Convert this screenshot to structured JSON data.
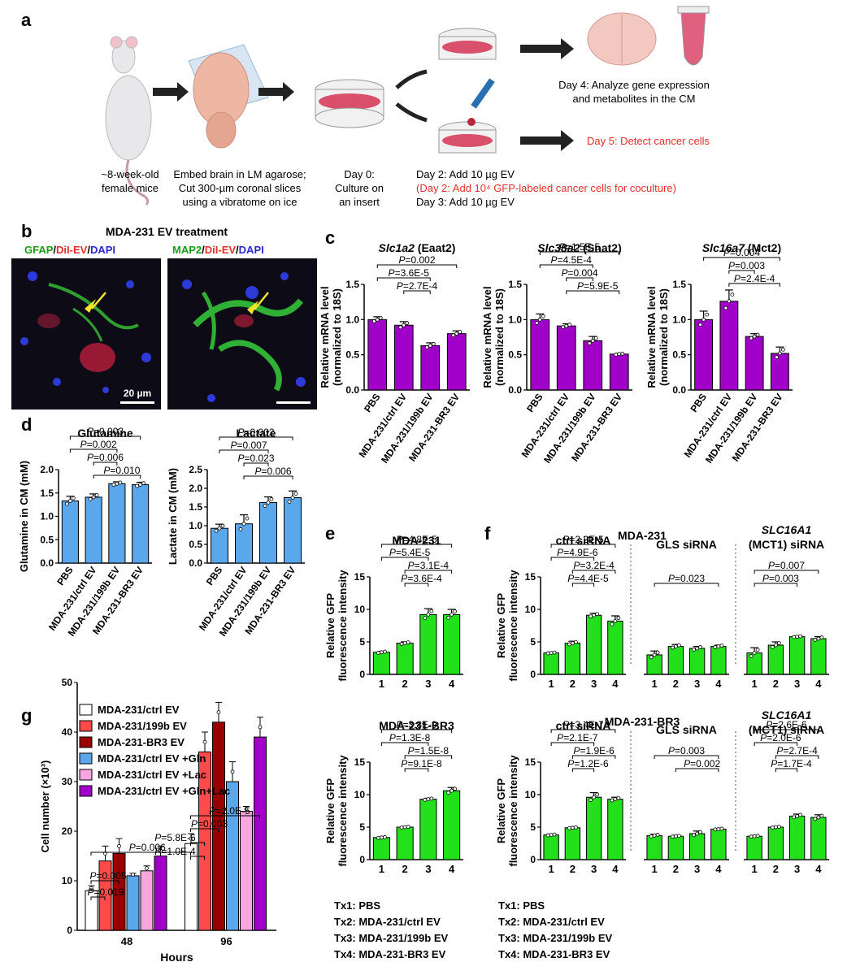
{
  "panel_a": {
    "letter": "a",
    "steps": [
      {
        "lines": [
          "~8-week-old",
          "female mice"
        ]
      },
      {
        "lines": [
          "Embed brain in LM agarose;",
          "Cut 300-µm coronal slices",
          "using a vibratome on ice"
        ]
      },
      {
        "lines": [
          "Day 0:",
          "Culture on",
          "an insert"
        ]
      }
    ],
    "day4": [
      "Day 4: Analyze gene expression",
      "and metabolites in the CM"
    ],
    "day5": "Day 5: Detect cancer cells",
    "day2": "Day 2: Add 10 µg EV",
    "day2_red": "(Day 2: Add 10⁴ GFP-labeled cancer cells for coculture)",
    "day3": "Day 3: Add 10 µg EV"
  },
  "panel_b": {
    "letter": "b",
    "title": "MDA-231 EV treatment",
    "left_stain": {
      "parts": [
        "GFAP",
        "/",
        "DiI-EV",
        "/",
        "DAPI"
      ]
    },
    "right_stain": {
      "parts": [
        "MAP2",
        "/",
        "DiI-EV",
        "/",
        "DAPI"
      ]
    },
    "scale": "20 µm"
  },
  "colors": {
    "purple": "#a100c8",
    "blue": "#5aa7ec",
    "green": "#22e01a",
    "red": "#e3302a",
    "blue_text": "#2a2ad0",
    "green_text": "#1a9c18"
  },
  "panel_c": {
    "letter": "c"
  },
  "panel_d": {
    "letter": "d"
  },
  "panel_e": {
    "letter": "e"
  },
  "panel_f": {
    "letter": "f",
    "title": "MDA-231",
    "title2": "MDA-231-BR3"
  },
  "panel_g": {
    "letter": "g"
  },
  "tx_legend": [
    "Tx1: PBS",
    "Tx2: MDA-231/ctrl EV",
    "Tx3: MDA-231/199b EV",
    "Tx4: MDA-231-BR3 EV"
  ],
  "chart_data": [
    {
      "id": "c1",
      "type": "bar",
      "title": "Slc1a2 (Eaat2)",
      "ylabel": "Relative mRNA level (normalized to 18S)",
      "categories": [
        "PBS",
        "MDA-231/ctrl EV",
        "MDA-231/199b EV",
        "MDA-231-BR3 EV"
      ],
      "values": [
        1.0,
        0.92,
        0.63,
        0.8
      ],
      "errors": [
        0.04,
        0.05,
        0.04,
        0.04
      ],
      "ylim": [
        0,
        1.5
      ],
      "yticks": [
        "0.0",
        "0.5",
        "1.0",
        "1.5"
      ],
      "pvalues": [
        {
          "from": 0,
          "to": 3,
          "label": "P=0.002"
        },
        {
          "from": 0,
          "to": 2,
          "label": "P=3.6E-5"
        },
        {
          "from": 1,
          "to": 2,
          "label": "P=2.7E-4"
        }
      ]
    },
    {
      "id": "c2",
      "type": "bar",
      "title": "Slc38a2 (Snat2)",
      "ylabel": "Relative mRNA level (normalized to 18S)",
      "categories": [
        "PBS",
        "MDA-231/ctrl EV",
        "MDA-231/199b EV",
        "MDA-231-BR3 EV"
      ],
      "values": [
        1.0,
        0.91,
        0.7,
        0.51
      ],
      "errors": [
        0.08,
        0.03,
        0.06,
        0.01
      ],
      "ylim": [
        0,
        1.5
      ],
      "yticks": [
        "0.0",
        "0.5",
        "1.0",
        "1.5"
      ],
      "pvalues": [
        {
          "from": 0,
          "to": 3,
          "label": "P=1.5E-5"
        },
        {
          "from": 0,
          "to": 2,
          "label": "P=4.5E-4"
        },
        {
          "from": 1,
          "to": 2,
          "label": "P=0.004"
        },
        {
          "from": 1,
          "to": 3,
          "label": "P=5.9E-5"
        }
      ]
    },
    {
      "id": "c3",
      "type": "bar",
      "title": "Slc16a7 (Mct2)",
      "ylabel": "Relative mRNA level (normalized to 18S)",
      "categories": [
        "PBS",
        "MDA-231/ctrl EV",
        "MDA-231/199b EV",
        "MDA-231-BR3 EV"
      ],
      "values": [
        1.0,
        1.26,
        0.76,
        0.52
      ],
      "errors": [
        0.12,
        0.16,
        0.04,
        0.09
      ],
      "ylim": [
        0,
        1.5
      ],
      "yticks": [
        "0.0",
        "0.5",
        "1.0",
        "1.5"
      ],
      "pvalues": [
        {
          "from": 0,
          "to": 3,
          "label": "P=0.004"
        },
        {
          "from": 1,
          "to": 2,
          "label": "P=0.003"
        },
        {
          "from": 1,
          "to": 3,
          "label": "P=2.4E-4"
        }
      ]
    },
    {
      "id": "d1",
      "type": "bar",
      "title": "Glutamine",
      "ylabel": "Glutamine in CM (mM)",
      "categories": [
        "PBS",
        "MDA-231/ctrl EV",
        "MDA-231/199b EV",
        "MDA-231-BR3 EV"
      ],
      "values": [
        1.33,
        1.41,
        1.7,
        1.68
      ],
      "errors": [
        0.1,
        0.07,
        0.04,
        0.05
      ],
      "ylim": [
        0,
        2.0
      ],
      "yticks": [
        "0.0",
        "0.5",
        "1.0",
        "1.5",
        "2.0"
      ],
      "pvalues": [
        {
          "from": 0,
          "to": 3,
          "label": "P=0.003"
        },
        {
          "from": 0,
          "to": 2,
          "label": "P=0.002"
        },
        {
          "from": 1,
          "to": 2,
          "label": "P=0.006"
        },
        {
          "from": 1,
          "to": 3,
          "label": "P=0.010"
        }
      ]
    },
    {
      "id": "d2",
      "type": "bar",
      "title": "Lactate",
      "ylabel": "Lactate in CM (mM)",
      "categories": [
        "PBS",
        "MDA-231/ctrl EV",
        "MDA-231/199b EV",
        "MDA-231-BR3 EV"
      ],
      "values": [
        0.93,
        1.05,
        1.62,
        1.75
      ],
      "errors": [
        0.11,
        0.24,
        0.15,
        0.18
      ],
      "ylim": [
        0,
        2.5
      ],
      "yticks": [
        "0.0",
        "0.5",
        "1.0",
        "1.5",
        "2.0",
        "2.5"
      ],
      "pvalues": [
        {
          "from": 0,
          "to": 3,
          "label": "P=0.002"
        },
        {
          "from": 0,
          "to": 2,
          "label": "P=0.007"
        },
        {
          "from": 1,
          "to": 2,
          "label": "P=0.023"
        },
        {
          "from": 1,
          "to": 3,
          "label": "P=0.006"
        }
      ]
    },
    {
      "id": "e1",
      "type": "bar",
      "title": "MDA-231",
      "ylabel": "Relative GFP fluorescence intensity",
      "categories": [
        "1",
        "2",
        "3",
        "4"
      ],
      "values": [
        3.4,
        4.8,
        9.2,
        9.2
      ],
      "errors": [
        0.15,
        0.2,
        0.9,
        0.8
      ],
      "ylim": [
        0,
        15
      ],
      "yticks": [
        "0",
        "5",
        "10",
        "15"
      ],
      "pvalues": [
        {
          "from": 0,
          "to": 3,
          "label": "P=4.8E-5"
        },
        {
          "from": 0,
          "to": 2,
          "label": "P=5.4E-5"
        },
        {
          "from": 1,
          "to": 3,
          "label": "P=3.1E-4"
        },
        {
          "from": 1,
          "to": 2,
          "label": "P=3.6E-4"
        }
      ]
    },
    {
      "id": "e2",
      "type": "bar",
      "title": "MDA-231-BR3",
      "ylabel": "Relative GFP fluorescence intensity",
      "categories": [
        "1",
        "2",
        "3",
        "4"
      ],
      "values": [
        3.4,
        5.0,
        9.3,
        10.6
      ],
      "errors": [
        0.1,
        0.1,
        0.15,
        0.5
      ],
      "ylim": [
        0,
        15
      ],
      "yticks": [
        "0",
        "5",
        "10",
        "15"
      ],
      "pvalues": [
        {
          "from": 0,
          "to": 3,
          "label": "P=3.8E-9"
        },
        {
          "from": 0,
          "to": 2,
          "label": "P=1.3E-8"
        },
        {
          "from": 1,
          "to": 3,
          "label": "P=1.5E-8"
        },
        {
          "from": 1,
          "to": 2,
          "label": "P=9.1E-8"
        }
      ]
    },
    {
      "id": "f1",
      "type": "bar",
      "title": "ctrl siRNA",
      "ylabel": "Relative GFP fluorescence intensity",
      "categories": [
        "1",
        "2",
        "3",
        "4"
      ],
      "values": [
        3.3,
        4.8,
        9.1,
        8.2
      ],
      "errors": [
        0.1,
        0.3,
        0.3,
        0.8
      ],
      "ylim": [
        0,
        15
      ],
      "yticks": [
        "0",
        "5",
        "10",
        "15"
      ],
      "pvalues": [
        {
          "from": 0,
          "to": 3,
          "label": "P=2.2E-5"
        },
        {
          "from": 0,
          "to": 2,
          "label": "P=4.9E-6"
        },
        {
          "from": 1,
          "to": 3,
          "label": "P=3.2E-4"
        },
        {
          "from": 1,
          "to": 2,
          "label": "P=4.4E-5"
        }
      ]
    },
    {
      "id": "f2",
      "type": "bar",
      "title": "GLS siRNA",
      "categories": [
        "1",
        "2",
        "3",
        "4"
      ],
      "values": [
        3.0,
        4.3,
        4.0,
        4.3
      ],
      "errors": [
        0.6,
        0.3,
        0.3,
        0.2
      ],
      "ylim": [
        0,
        15
      ],
      "pvalues": [
        {
          "from": 0,
          "to": 3,
          "label": "P=0.023"
        }
      ]
    },
    {
      "id": "f3",
      "type": "bar",
      "title": "SLC16A1 (MCT1) siRNA",
      "categories": [
        "1",
        "2",
        "3",
        "4"
      ],
      "values": [
        3.3,
        4.5,
        5.8,
        5.5
      ],
      "errors": [
        0.8,
        0.5,
        0.1,
        0.3
      ],
      "ylim": [
        0,
        15
      ],
      "pvalues": [
        {
          "from": 0,
          "to": 3,
          "label": "P=0.007"
        },
        {
          "from": 0,
          "to": 2,
          "label": "P=0.003"
        }
      ]
    },
    {
      "id": "f4",
      "type": "bar",
      "title": "ctrl siRNA",
      "ylabel": "Relative GFP fluorescence intensity",
      "categories": [
        "1",
        "2",
        "3",
        "4"
      ],
      "values": [
        3.8,
        4.9,
        9.6,
        9.3
      ],
      "errors": [
        0.1,
        0.1,
        0.7,
        0.3
      ],
      "ylim": [
        0,
        15
      ],
      "yticks": [
        "0",
        "5",
        "10",
        "15"
      ],
      "pvalues": [
        {
          "from": 0,
          "to": 3,
          "label": "P=3.4E-7"
        },
        {
          "from": 0,
          "to": 2,
          "label": "P=2.1E-7"
        },
        {
          "from": 1,
          "to": 3,
          "label": "P=1.9E-6"
        },
        {
          "from": 1,
          "to": 2,
          "label": "P=1.2E-6"
        }
      ]
    },
    {
      "id": "f5",
      "type": "bar",
      "title": "GLS siRNA",
      "categories": [
        "1",
        "2",
        "3",
        "4"
      ],
      "values": [
        3.7,
        3.6,
        4.0,
        4.7
      ],
      "errors": [
        0.2,
        0.1,
        0.4,
        0.1
      ],
      "ylim": [
        0,
        15
      ],
      "pvalues": [
        {
          "from": 0,
          "to": 3,
          "label": "P=0.003"
        },
        {
          "from": 1,
          "to": 3,
          "label": "P=0.002"
        }
      ]
    },
    {
      "id": "f6",
      "type": "bar",
      "title": "SLC16A1 (MCT1) siRNA",
      "categories": [
        "1",
        "2",
        "3",
        "4"
      ],
      "values": [
        3.6,
        5.0,
        6.7,
        6.5
      ],
      "errors": [
        0.1,
        0.1,
        0.3,
        0.4
      ],
      "ylim": [
        0,
        15
      ],
      "pvalues": [
        {
          "from": 0,
          "to": 3,
          "label": "P=2.6E-6"
        },
        {
          "from": 0,
          "to": 2,
          "label": "P=2.0E-6"
        },
        {
          "from": 1,
          "to": 3,
          "label": "P=2.7E-4"
        },
        {
          "from": 1,
          "to": 2,
          "label": "P=1.7E-4"
        }
      ]
    },
    {
      "id": "g",
      "type": "bar",
      "ylabel": "Cell number (×10³)",
      "xlabel": "Hours",
      "categories": [
        "48",
        "96"
      ],
      "series": [
        {
          "name": "MDA-231/ctrl EV",
          "color": "#ffffff",
          "values": [
            8,
            17.5
          ],
          "errors": [
            1,
            2
          ]
        },
        {
          "name": "MDA-231/199b EV",
          "color": "#ff4a4a",
          "values": [
            14,
            36
          ],
          "errors": [
            3,
            4
          ]
        },
        {
          "name": "MDA-231-BR3 EV",
          "color": "#9a0000",
          "values": [
            15.5,
            42
          ],
          "errors": [
            3,
            4
          ]
        },
        {
          "name": "MDA-231/ctrl EV +Gln",
          "color": "#5aa7ec",
          "values": [
            11,
            30
          ],
          "errors": [
            0.5,
            4
          ]
        },
        {
          "name": "MDA-231/ctrl EV +Lac",
          "color": "#f7a6de",
          "values": [
            12,
            24
          ],
          "errors": [
            1,
            1
          ]
        },
        {
          "name": "MDA-231/ctrl EV +Gln+Lac",
          "color": "#a100c8",
          "values": [
            15,
            39
          ],
          "errors": [
            2,
            4
          ]
        }
      ],
      "ylim": [
        0,
        50
      ],
      "yticks": [
        "0",
        "10",
        "20",
        "30",
        "40",
        "50"
      ],
      "pvalues": [
        "P=0.006",
        "P=0.005",
        "P=0.019",
        "P=2.0E-5",
        "P=0.003",
        "P=5.8E-6",
        "P=1.0E-4"
      ]
    }
  ]
}
